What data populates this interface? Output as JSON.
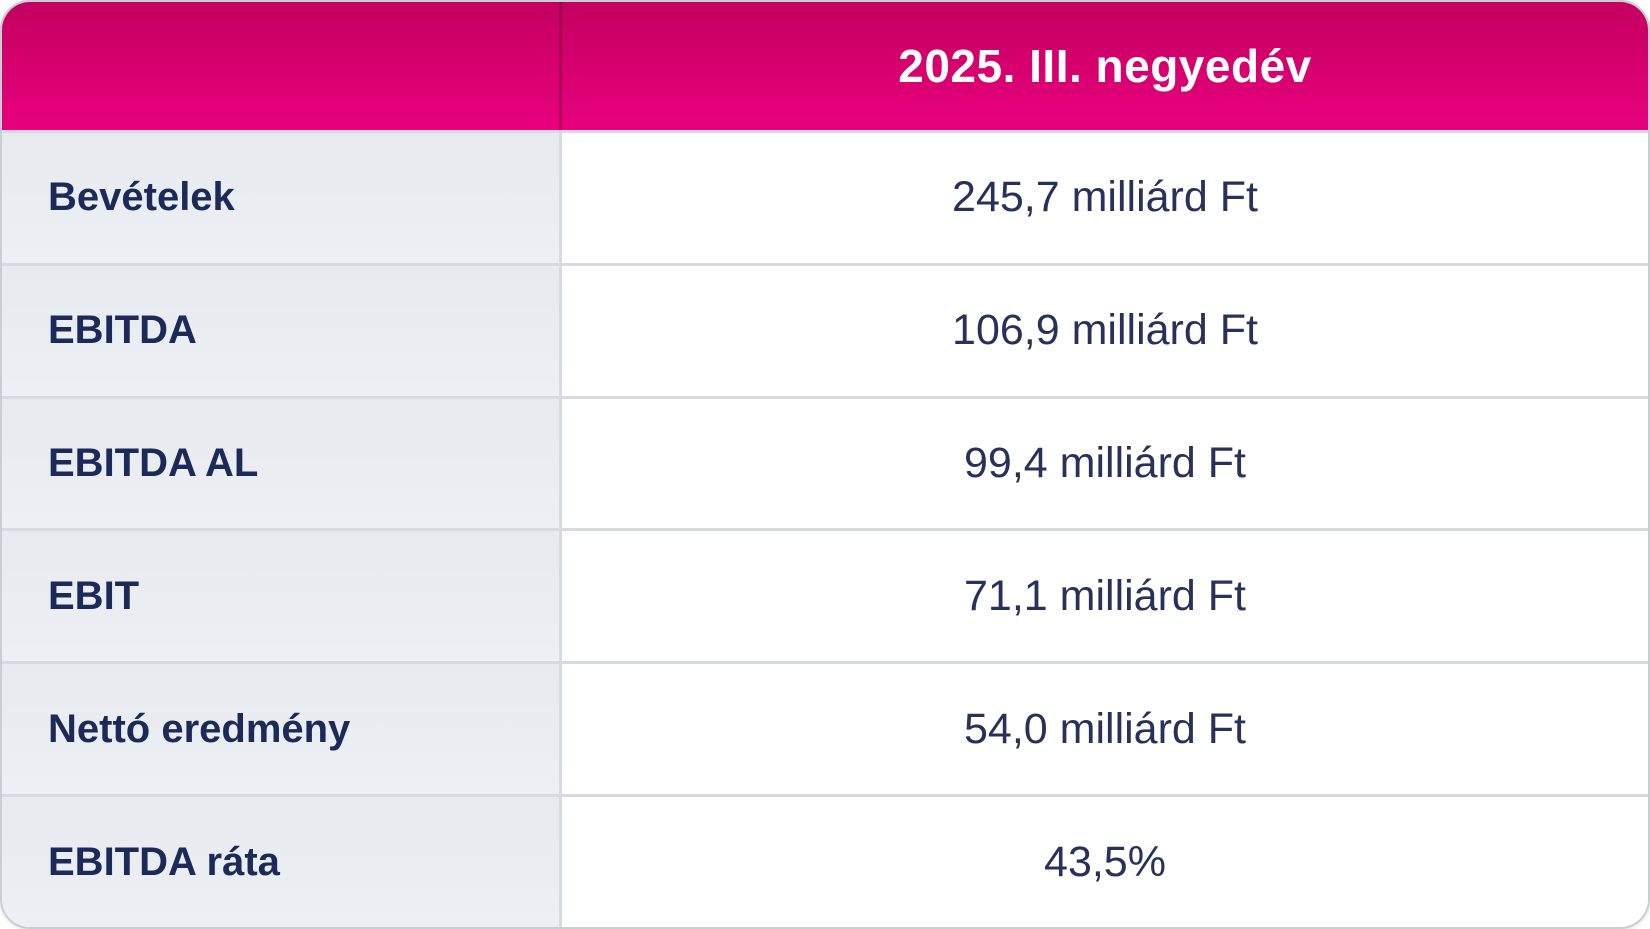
{
  "chart_data": {
    "type": "table",
    "title": "2025. III. negyedév",
    "columns": [
      "",
      "2025. III. negyedév"
    ],
    "rows": [
      {
        "label": "Bevételek",
        "value": "245,7 milliárd Ft"
      },
      {
        "label": "EBITDA",
        "value": "106,9 milliárd Ft"
      },
      {
        "label": "EBITDA AL",
        "value": "99,4 milliárd Ft"
      },
      {
        "label": "EBIT",
        "value": "71,1 milliárd Ft"
      },
      {
        "label": "Nettó eredmény",
        "value": "54,0 milliárd Ft"
      },
      {
        "label": "EBITDA ráta",
        "value": "43,5%"
      }
    ]
  },
  "colors": {
    "header_magenta_top": "#c40061",
    "header_magenta_bottom": "#e8007f",
    "label_column_bg": "#e9edf1",
    "value_column_bg": "#ffffff",
    "text_navy": "#1b2a59",
    "row_border": "#d6dbe1",
    "outer_border": "#c8ced5"
  }
}
